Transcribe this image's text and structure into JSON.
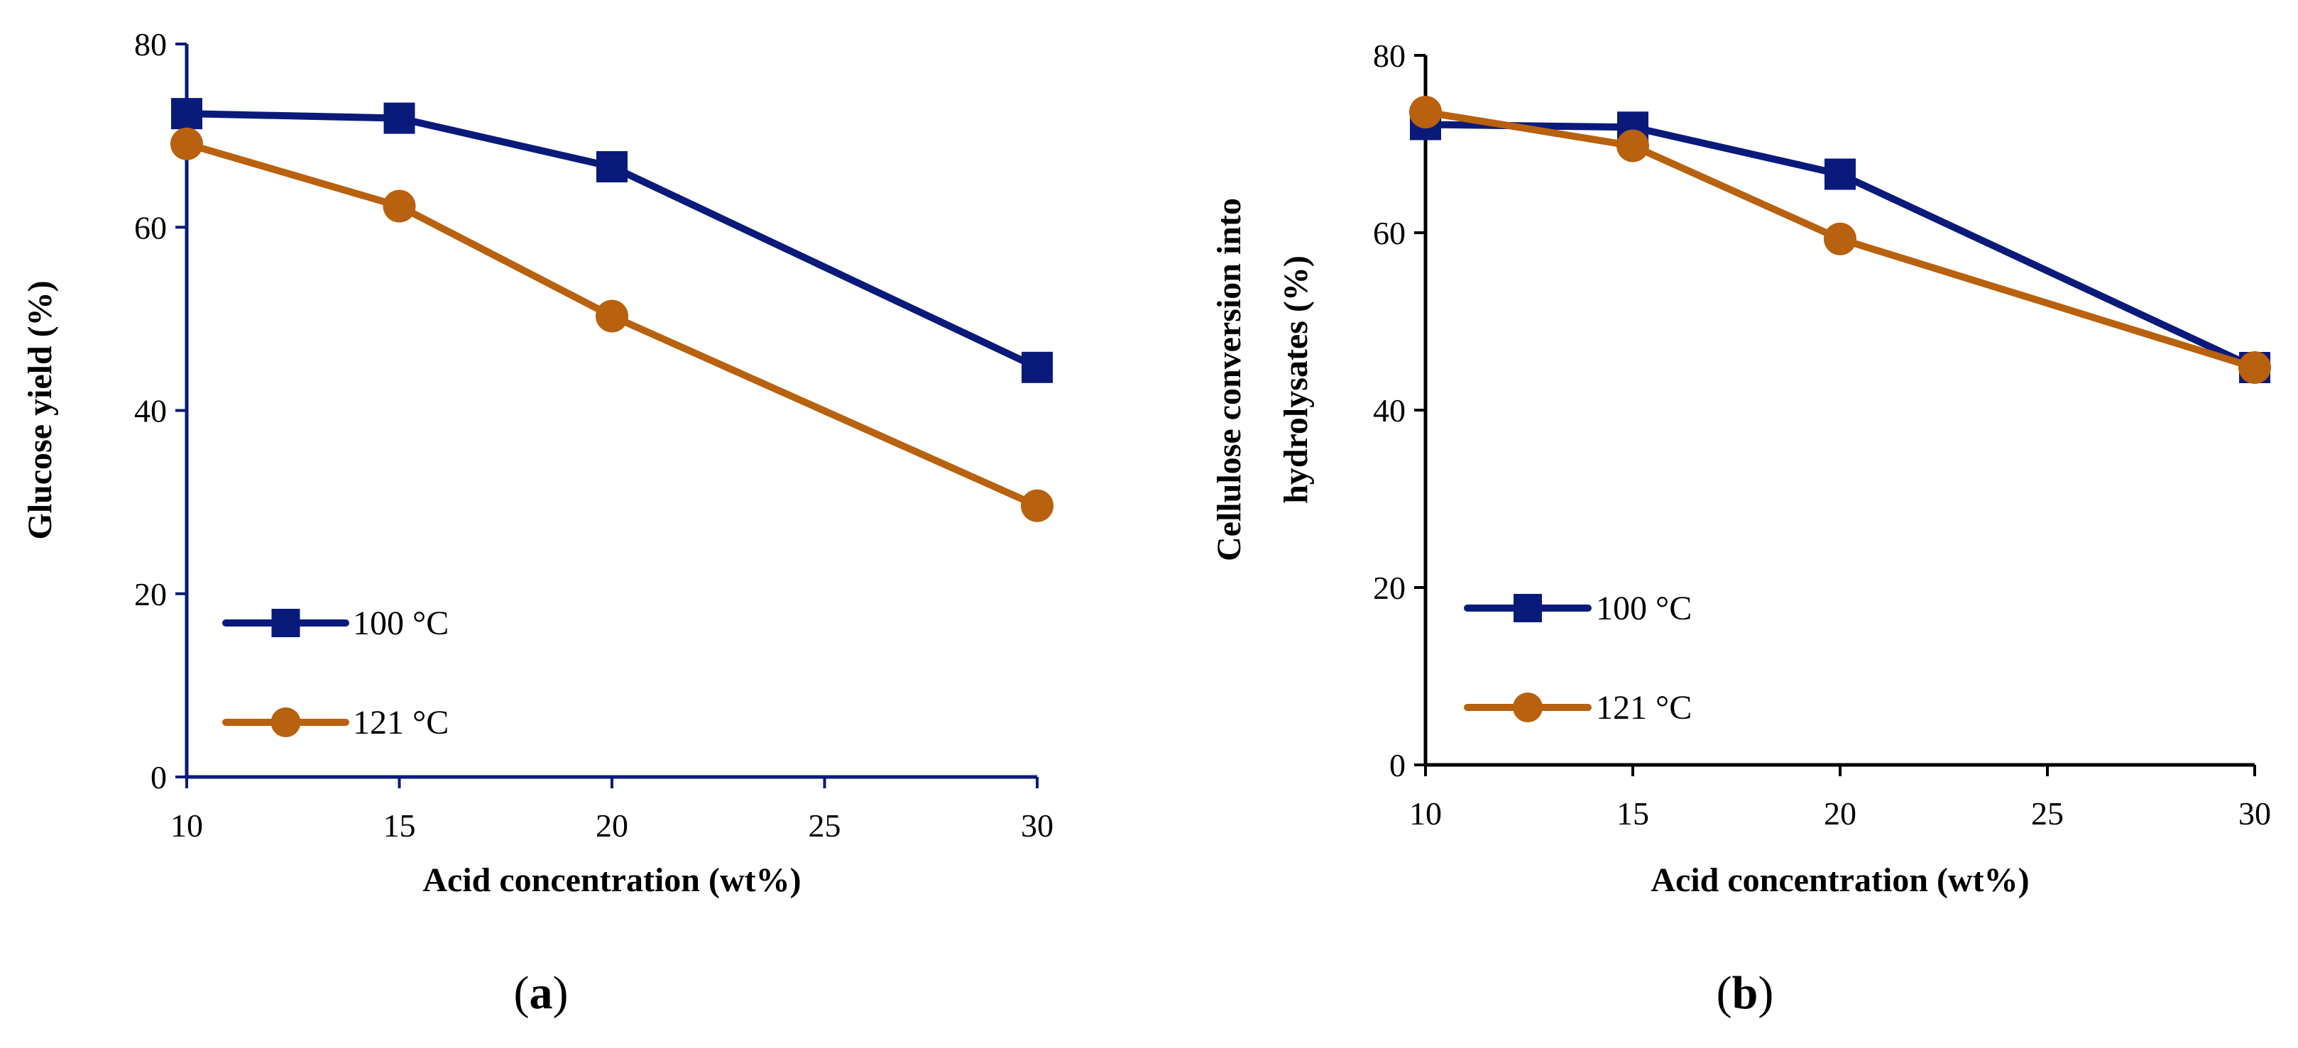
{
  "chart_data": [
    {
      "type": "line",
      "panel_label": "a",
      "xlabel": "Acid concentration (wt%)",
      "ylabel": "Glucose yield (%)",
      "x_ticks": [
        "10",
        "15",
        "20",
        "25",
        "30"
      ],
      "y_ticks": [
        "0",
        "20",
        "40",
        "60",
        "80"
      ],
      "xlim": [
        10,
        30
      ],
      "ylim": [
        0,
        80
      ],
      "grid": false,
      "legend_position": "bottom-left",
      "series": [
        {
          "name": "100 °C",
          "marker": "square",
          "color": "#0a1a7a",
          "x": [
            10,
            15,
            20,
            30
          ],
          "y": [
            72.4,
            71.9,
            66.6,
            44.7
          ]
        },
        {
          "name": "121 °C",
          "marker": "circle",
          "color": "#b8610f",
          "x": [
            10,
            15,
            20,
            30
          ],
          "y": [
            69.1,
            62.3,
            50.3,
            29.6
          ]
        }
      ]
    },
    {
      "type": "line",
      "panel_label": "b",
      "xlabel": "Acid concentration (wt%)",
      "ylabel_lines": [
        "Cellulose conversion into",
        "hydrolysates (%)"
      ],
      "x_ticks": [
        "10",
        "15",
        "20",
        "25",
        "30"
      ],
      "y_ticks": [
        "0",
        "20",
        "40",
        "60",
        "80"
      ],
      "xlim": [
        10,
        30
      ],
      "ylim": [
        0,
        80
      ],
      "grid": false,
      "legend_position": "bottom-left",
      "series": [
        {
          "name": "100 °C",
          "marker": "square",
          "color": "#0a1a7a",
          "x": [
            10,
            15,
            20,
            30
          ],
          "y": [
            72.2,
            71.9,
            66.6,
            44.8
          ]
        },
        {
          "name": "121 °C",
          "marker": "circle",
          "color": "#b8610f",
          "x": [
            10,
            15,
            20,
            30
          ],
          "y": [
            73.6,
            69.8,
            59.3,
            44.8
          ]
        }
      ]
    }
  ]
}
